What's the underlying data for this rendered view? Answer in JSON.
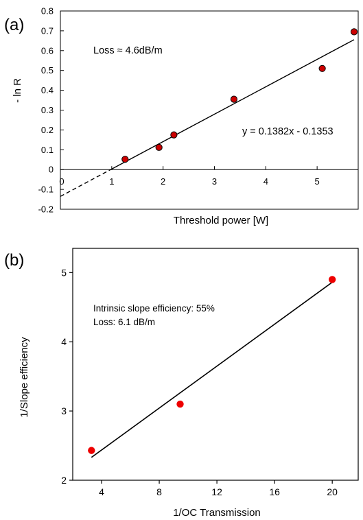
{
  "chart_data": [
    {
      "panel_label": "(a)",
      "type": "scatter",
      "xlabel": "Threshold power [W]",
      "ylabel": "- ln R",
      "xlim": [
        0,
        5.8
      ],
      "ylim": [
        -0.2,
        0.8
      ],
      "xticks": [
        0,
        1,
        2,
        3,
        4,
        5
      ],
      "yticks": [
        -0.2,
        -0.1,
        0,
        0.1,
        0.2,
        0.3,
        0.4,
        0.5,
        0.6,
        0.7,
        0.8
      ],
      "xtick_labels": [
        "0",
        "1",
        "2",
        "3",
        "4",
        "5"
      ],
      "ytick_labels": [
        "-0.2",
        "-0.1",
        "0",
        "0.1",
        "0.2",
        "0.3",
        "0.4",
        "0.5",
        "0.6",
        "0.7",
        "0.8"
      ],
      "points": {
        "x": [
          1.26,
          1.92,
          2.21,
          3.38,
          5.1,
          5.72
        ],
        "y": [
          0.052,
          0.112,
          0.175,
          0.355,
          0.51,
          0.695
        ]
      },
      "fit": {
        "slope": 0.1382,
        "intercept": -0.1353,
        "solid_from": 1.0,
        "solid_to": 5.72,
        "dashed_from": 0.0,
        "dashed_to": 1.0
      },
      "annotations": [
        "Loss ≈ 4.6dB/m",
        "y = 0.1382x - 0.1353"
      ],
      "grid": false,
      "colors": {
        "points": "#cc0000"
      }
    },
    {
      "panel_label": "(b)",
      "type": "scatter",
      "xlabel": "1/OC Transmission",
      "ylabel": "1/Slope efficiency",
      "xlim": [
        2,
        21.8
      ],
      "ylim": [
        2,
        5.35
      ],
      "xticks": [
        4,
        8,
        12,
        16,
        20
      ],
      "yticks": [
        2,
        3,
        4,
        5
      ],
      "xtick_labels": [
        "4",
        "8",
        "12",
        "16",
        "20"
      ],
      "ytick_labels": [
        "2",
        "3",
        "4",
        "5"
      ],
      "points": {
        "x": [
          3.3,
          9.45,
          20.0
        ],
        "y": [
          2.43,
          3.1,
          4.9
        ]
      },
      "fit": {
        "x_from": 3.3,
        "x_to": 20.0,
        "y_from": 2.33,
        "y_to": 4.86
      },
      "annotations": [
        "Intrinsic slope efficiency: 55%",
        "Loss: 6.1 dB/m"
      ],
      "grid": false,
      "colors": {
        "points": "#ee0000"
      }
    }
  ]
}
